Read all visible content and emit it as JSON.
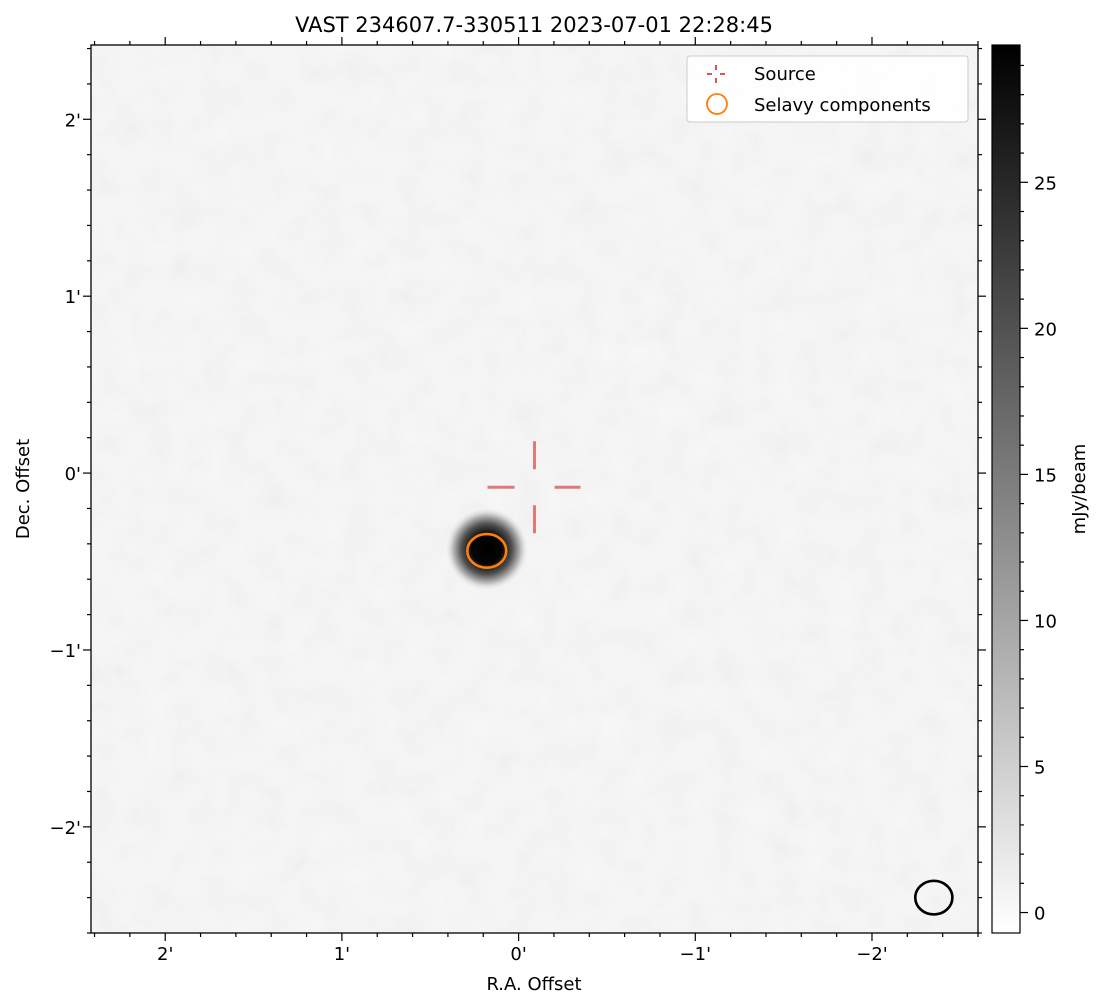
{
  "chart_data": {
    "type": "heatmap",
    "title": "VAST 234607.7-330511 2023-07-01 22:28:45",
    "xlabel": "R.A. Offset",
    "ylabel": "Dec. Offset",
    "colorbar_label": "mJy/beam",
    "xlim": [
      2.42,
      -2.6
    ],
    "ylim": [
      -2.6,
      2.42
    ],
    "x_direction": "decreasing",
    "x_ticks": [
      2,
      1,
      0,
      -1,
      -2
    ],
    "x_tick_labels": [
      "2'",
      "1'",
      "0'",
      "−1'",
      "−2'"
    ],
    "y_ticks": [
      2,
      1,
      0,
      -1,
      -2
    ],
    "y_tick_labels": [
      "2'",
      "1'",
      "0'",
      "−1'",
      "−2'"
    ],
    "colorbar_range": [
      -0.7,
      29.7
    ],
    "colorbar_ticks": [
      0,
      5,
      10,
      15,
      20,
      25
    ],
    "colormap": "gray_r",
    "source_marker": {
      "x": -0.09,
      "y": -0.08,
      "color": "#d62728",
      "style": "dashed-cross"
    },
    "bright_peak": {
      "x": 0.18,
      "y": -0.43,
      "peak_value": 29.7
    },
    "selavy_components": [
      {
        "x": 0.18,
        "y": -0.44,
        "major_arcmin": 0.22,
        "minor_arcmin": 0.19,
        "color": "#ff7f0e"
      }
    ],
    "beam": {
      "x": -2.35,
      "y": -2.4,
      "major_arcmin": 0.21,
      "minor_arcmin": 0.19,
      "color": "#000000"
    },
    "legend": {
      "location": "upper right",
      "entries": [
        {
          "label": "Source",
          "marker": "dashed-cross",
          "color": "#d62728"
        },
        {
          "label": "Selavy components",
          "marker": "circle",
          "color": "#ff7f0e"
        }
      ]
    },
    "grid": false
  }
}
